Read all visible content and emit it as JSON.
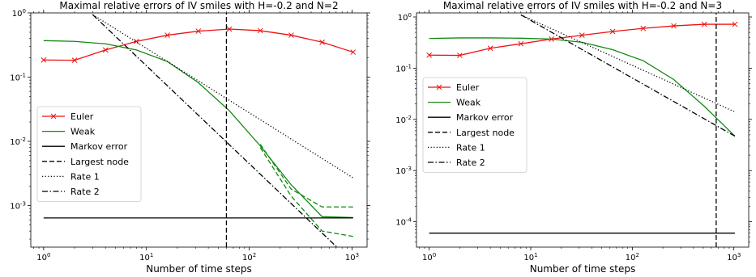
{
  "chart_data": [
    {
      "type": "line",
      "title": "Maximal relative errors of IV smiles with H=-0.2 and N=2",
      "xlabel": "Number of time steps",
      "ylabel": "",
      "x_scale": "log",
      "y_scale": "log",
      "xlim": [
        0.75,
        1400
      ],
      "ylim": [
        0.000225,
        1.0
      ],
      "x_ticks": [
        {
          "value": 1,
          "label": "10^0"
        },
        {
          "value": 10,
          "label": "10^1"
        },
        {
          "value": 100,
          "label": "10^2"
        },
        {
          "value": 1000,
          "label": "10^3"
        }
      ],
      "y_ticks": [
        {
          "value": 0.001,
          "label": "10^-3"
        },
        {
          "value": 0.01,
          "label": "10^-2"
        },
        {
          "value": 0.1,
          "label": "10^-1"
        },
        {
          "value": 1,
          "label": "10^0"
        }
      ],
      "grid": false,
      "legend_position": "center-left",
      "series": [
        {
          "name": "Euler",
          "color": "#ee1111",
          "dash": "solid",
          "marker": "x",
          "x": [
            1,
            2,
            4,
            8,
            16,
            32,
            64,
            128,
            256,
            512,
            1024
          ],
          "y": [
            0.185,
            0.183,
            0.265,
            0.36,
            0.45,
            0.52,
            0.56,
            0.53,
            0.45,
            0.35,
            0.245
          ]
        },
        {
          "name": "Weak",
          "color": "#118811",
          "dash": "solid",
          "marker": "none",
          "x": [
            1,
            2,
            4,
            8,
            16,
            32,
            64,
            128,
            256,
            512,
            1024
          ],
          "y": [
            0.37,
            0.36,
            0.33,
            0.265,
            0.175,
            0.082,
            0.03,
            0.0085,
            0.0021,
            0.00067,
            0.00065
          ]
        },
        {
          "name": "",
          "color": "#118811",
          "dash": "dashed",
          "marker": "none",
          "x": [
            128,
            256,
            512,
            1024
          ],
          "y": [
            0.009,
            0.0018,
            0.00095,
            0.00095
          ]
        },
        {
          "name": "",
          "color": "#118811",
          "dash": "dashed",
          "marker": "none",
          "x": [
            128,
            256,
            512,
            1024
          ],
          "y": [
            0.008,
            0.0014,
            0.0004,
            0.00033
          ]
        },
        {
          "name": "Markov error",
          "color": "#000000",
          "dash": "solid",
          "marker": "none",
          "x": [
            1,
            1024
          ],
          "y": [
            0.00064,
            0.00064
          ]
        },
        {
          "name": "Largest node",
          "color": "#000000",
          "dash": "dashed",
          "marker": "none",
          "orientation": "vertical",
          "x": [
            60,
            60
          ],
          "y": [
            0.000225,
            1.0
          ]
        },
        {
          "name": "Rate 1",
          "color": "#000000",
          "dash": "dotted",
          "marker": "none",
          "x": [
            3,
            1024
          ],
          "y": [
            0.94,
            0.0027
          ]
        },
        {
          "name": "Rate 2",
          "color": "#000000",
          "dash": "dashdot",
          "marker": "none",
          "x": [
            3,
            770
          ],
          "y": [
            0.94,
            0.0002
          ]
        }
      ]
    },
    {
      "type": "line",
      "title": "Maximal relative errors of IV smiles with H=-0.2 and N=3",
      "xlabel": "Number of time steps",
      "ylabel": "",
      "x_scale": "log",
      "y_scale": "log",
      "xlim": [
        0.75,
        1400
      ],
      "ylim": [
        3.2e-05,
        1.2
      ],
      "x_ticks": [
        {
          "value": 1,
          "label": "10^0"
        },
        {
          "value": 10,
          "label": "10^1"
        },
        {
          "value": 100,
          "label": "10^2"
        },
        {
          "value": 1000,
          "label": "10^3"
        }
      ],
      "y_ticks": [
        {
          "value": 0.0001,
          "label": "10^-4"
        },
        {
          "value": 0.001,
          "label": "10^-3"
        },
        {
          "value": 0.01,
          "label": "10^-2"
        },
        {
          "value": 0.1,
          "label": "10^-1"
        },
        {
          "value": 1,
          "label": "10^0"
        }
      ],
      "grid": false,
      "legend_position": "center-left",
      "series": [
        {
          "name": "Euler",
          "color": "#ee1111",
          "dash": "solid",
          "marker": "x",
          "x": [
            1,
            2,
            4,
            8,
            16,
            32,
            64,
            128,
            256,
            512,
            1024
          ],
          "y": [
            0.18,
            0.178,
            0.245,
            0.3,
            0.37,
            0.44,
            0.52,
            0.6,
            0.67,
            0.72,
            0.72
          ]
        },
        {
          "name": "Weak",
          "color": "#118811",
          "dash": "solid",
          "marker": "none",
          "x": [
            1,
            2,
            4,
            8,
            16,
            32,
            64,
            128,
            256,
            512,
            1024
          ],
          "y": [
            0.38,
            0.39,
            0.39,
            0.385,
            0.37,
            0.32,
            0.23,
            0.14,
            0.06,
            0.018,
            0.0047
          ]
        },
        {
          "name": "Markov error",
          "color": "#000000",
          "dash": "solid",
          "marker": "none",
          "x": [
            1,
            1024
          ],
          "y": [
            6e-05,
            6e-05
          ]
        },
        {
          "name": "Largest node",
          "color": "#000000",
          "dash": "dashed",
          "marker": "none",
          "orientation": "vertical",
          "x": [
            670,
            670
          ],
          "y": [
            3.2e-05,
            1.2
          ]
        },
        {
          "name": "Rate 1",
          "color": "#000000",
          "dash": "dotted",
          "marker": "none",
          "x": [
            8,
            1024
          ],
          "y": [
            1.1,
            0.014
          ]
        },
        {
          "name": "Rate 2",
          "color": "#000000",
          "dash": "dashdot",
          "marker": "none",
          "x": [
            8,
            1024
          ],
          "y": [
            1.1,
            0.0047
          ]
        }
      ]
    }
  ]
}
